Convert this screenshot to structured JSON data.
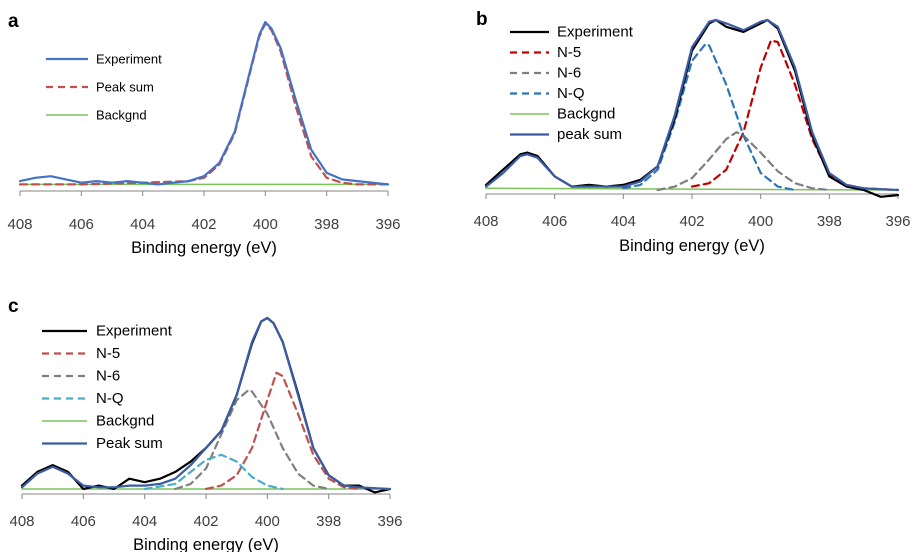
{
  "chart_data": [
    {
      "panel": "a",
      "type": "line",
      "xlabel": "Binding energy (eV)",
      "xlim": [
        408,
        396
      ],
      "x_ticks": [
        408,
        406,
        404,
        402,
        400,
        398,
        396
      ],
      "legend_position": "top-left",
      "series": [
        {
          "name": "Experiment",
          "style": "solid",
          "color": "#4472c4",
          "x": [
            408,
            407.5,
            407,
            406.5,
            406,
            405.5,
            405,
            404.5,
            404,
            403.5,
            403,
            402.5,
            402,
            401.5,
            401,
            400.5,
            400.2,
            400,
            399.8,
            399.5,
            399,
            398.5,
            398,
            397.5,
            397,
            396.5,
            396
          ],
          "y": [
            0.03,
            0.05,
            0.06,
            0.04,
            0.02,
            0.03,
            0.02,
            0.03,
            0.02,
            0.01,
            0.02,
            0.03,
            0.06,
            0.14,
            0.33,
            0.7,
            0.92,
            1.0,
            0.96,
            0.84,
            0.52,
            0.22,
            0.08,
            0.04,
            0.03,
            0.02,
            0.01
          ]
        },
        {
          "name": "Peak sum",
          "style": "dashed",
          "color": "#c0504d",
          "x": [
            408,
            406,
            404,
            402.5,
            402,
            401.5,
            401,
            400.5,
            400.2,
            400,
            399.8,
            399.5,
            399,
            398.5,
            398,
            397.5,
            397,
            396
          ],
          "y": [
            0.01,
            0.01,
            0.02,
            0.03,
            0.05,
            0.13,
            0.32,
            0.69,
            0.91,
            0.99,
            0.95,
            0.82,
            0.48,
            0.18,
            0.05,
            0.02,
            0.01,
            0.01
          ]
        },
        {
          "name": "Backgnd",
          "style": "solid",
          "color": "#7cc35a",
          "x": [
            408,
            396
          ],
          "y": [
            0.01,
            0.01
          ]
        }
      ]
    },
    {
      "panel": "b",
      "type": "line",
      "xlabel": "Binding energy (eV)",
      "xlim": [
        408,
        396
      ],
      "x_ticks": [
        408,
        406,
        404,
        402,
        400,
        398,
        396
      ],
      "legend_position": "top-left",
      "series": [
        {
          "name": "Experiment",
          "style": "solid",
          "color": "#000000",
          "x": [
            408,
            407.5,
            407,
            406.8,
            406.5,
            406,
            405.5,
            405,
            404.5,
            404,
            403.5,
            403,
            402.5,
            402,
            401.5,
            401.3,
            401,
            400.5,
            400,
            399.8,
            399.5,
            399,
            398.5,
            398,
            397.5,
            397,
            396.5,
            396
          ],
          "y": [
            0.03,
            0.12,
            0.21,
            0.22,
            0.2,
            0.08,
            0.02,
            0.03,
            0.02,
            0.03,
            0.06,
            0.14,
            0.42,
            0.82,
            0.98,
            1.0,
            0.96,
            0.93,
            0.98,
            1.0,
            0.95,
            0.7,
            0.32,
            0.08,
            0.02,
            0.0,
            -0.04,
            -0.03
          ]
        },
        {
          "name": "N-5",
          "style": "dashed",
          "color": "#c00000",
          "x": [
            402,
            401.5,
            401,
            400.5,
            400,
            399.7,
            399.5,
            399,
            398.5,
            398,
            397.5,
            397,
            396
          ],
          "y": [
            0.02,
            0.04,
            0.12,
            0.34,
            0.72,
            0.88,
            0.87,
            0.62,
            0.3,
            0.09,
            0.03,
            0.01,
            0.0
          ]
        },
        {
          "name": "N-6",
          "style": "dashed",
          "color": "#7f7f7f",
          "x": [
            403,
            402.5,
            402,
            401.5,
            401,
            400.7,
            400.5,
            400,
            399.5,
            399,
            398.5,
            398
          ],
          "y": [
            0.0,
            0.02,
            0.07,
            0.18,
            0.3,
            0.34,
            0.32,
            0.22,
            0.11,
            0.04,
            0.01,
            0.0
          ]
        },
        {
          "name": "N-Q",
          "style": "dashed",
          "color": "#2e75b6",
          "x": [
            404,
            403.5,
            403,
            402.5,
            402,
            401.6,
            401.5,
            401,
            400.5,
            400,
            399.5,
            399
          ],
          "y": [
            0.01,
            0.03,
            0.12,
            0.4,
            0.76,
            0.86,
            0.85,
            0.62,
            0.32,
            0.1,
            0.02,
            0.0
          ]
        },
        {
          "name": "Backgnd",
          "style": "solid",
          "color": "#7cc35a",
          "x": [
            408,
            396
          ],
          "y": [
            0.01,
            0.0
          ]
        },
        {
          "name": "peak sum",
          "style": "solid",
          "color": "#3b5ba5",
          "x": [
            408,
            407.5,
            407,
            406.8,
            406.5,
            406,
            405.5,
            405,
            404.5,
            404,
            403.5,
            403,
            402.5,
            402,
            401.5,
            401.3,
            401,
            400.5,
            400,
            399.8,
            399.5,
            399,
            398.5,
            398,
            397.5,
            397,
            396
          ],
          "y": [
            0.02,
            0.1,
            0.2,
            0.21,
            0.19,
            0.08,
            0.02,
            0.02,
            0.02,
            0.02,
            0.05,
            0.14,
            0.44,
            0.84,
            0.99,
            1.0,
            0.98,
            0.94,
            0.99,
            1.0,
            0.96,
            0.72,
            0.34,
            0.1,
            0.03,
            0.01,
            0.0
          ]
        }
      ]
    },
    {
      "panel": "c",
      "type": "line",
      "xlabel": "Binding energy (eV)",
      "xlim": [
        408,
        396
      ],
      "x_ticks": [
        408,
        406,
        404,
        402,
        400,
        398,
        396
      ],
      "legend_position": "top-left",
      "series": [
        {
          "name": "Experiment",
          "style": "solid",
          "color": "#000000",
          "x": [
            408,
            407.5,
            407,
            406.5,
            406,
            405.5,
            405,
            404.5,
            404,
            403.5,
            403,
            402.5,
            402,
            401.5,
            401,
            400.5,
            400.2,
            400,
            399.8,
            399.5,
            399,
            398.5,
            398,
            397.5,
            397,
            396.5,
            396
          ],
          "y": [
            0.02,
            0.1,
            0.14,
            0.1,
            0.0,
            0.02,
            0.0,
            0.06,
            0.04,
            0.06,
            0.1,
            0.16,
            0.24,
            0.34,
            0.55,
            0.85,
            0.98,
            1.0,
            0.97,
            0.86,
            0.56,
            0.24,
            0.08,
            0.02,
            0.02,
            -0.02,
            0.0
          ]
        },
        {
          "name": "N-5",
          "style": "dashed",
          "color": "#c0504d",
          "x": [
            402,
            401.5,
            401,
            400.5,
            400,
            399.7,
            399.5,
            399,
            398.5,
            398,
            397.5,
            397
          ],
          "y": [
            0.0,
            0.02,
            0.08,
            0.24,
            0.52,
            0.68,
            0.66,
            0.44,
            0.2,
            0.06,
            0.01,
            0.0
          ]
        },
        {
          "name": "N-6",
          "style": "dashed",
          "color": "#7f7f7f",
          "x": [
            403,
            402.5,
            402,
            401.5,
            401,
            400.6,
            400.5,
            400,
            399.5,
            399,
            398.5,
            398
          ],
          "y": [
            0.0,
            0.03,
            0.12,
            0.32,
            0.52,
            0.58,
            0.57,
            0.44,
            0.24,
            0.09,
            0.02,
            0.0
          ]
        },
        {
          "name": "N-Q",
          "style": "dashed",
          "color": "#4bacc6",
          "x": [
            404,
            403,
            402.5,
            402,
            401.5,
            401,
            400.5,
            400,
            399.5
          ],
          "y": [
            0.0,
            0.03,
            0.1,
            0.17,
            0.2,
            0.16,
            0.07,
            0.02,
            0.0
          ]
        },
        {
          "name": "Backgnd",
          "style": "solid",
          "color": "#7cc35a",
          "x": [
            408,
            396
          ],
          "y": [
            0.0,
            0.0
          ]
        },
        {
          "name": "Peak sum",
          "style": "solid",
          "color": "#3b5ba5",
          "x": [
            408,
            407.5,
            407,
            406.5,
            406,
            405.5,
            405,
            404.5,
            404,
            403.5,
            403,
            402.5,
            402,
            401.5,
            401,
            400.5,
            400.2,
            400,
            399.8,
            399.5,
            399,
            398.5,
            398,
            397.5,
            397,
            396
          ],
          "y": [
            0.01,
            0.09,
            0.13,
            0.09,
            0.02,
            0.01,
            0.01,
            0.02,
            0.02,
            0.03,
            0.06,
            0.14,
            0.24,
            0.34,
            0.55,
            0.86,
            0.98,
            1.0,
            0.97,
            0.86,
            0.55,
            0.24,
            0.08,
            0.02,
            0.01,
            0.0
          ]
        }
      ]
    }
  ]
}
